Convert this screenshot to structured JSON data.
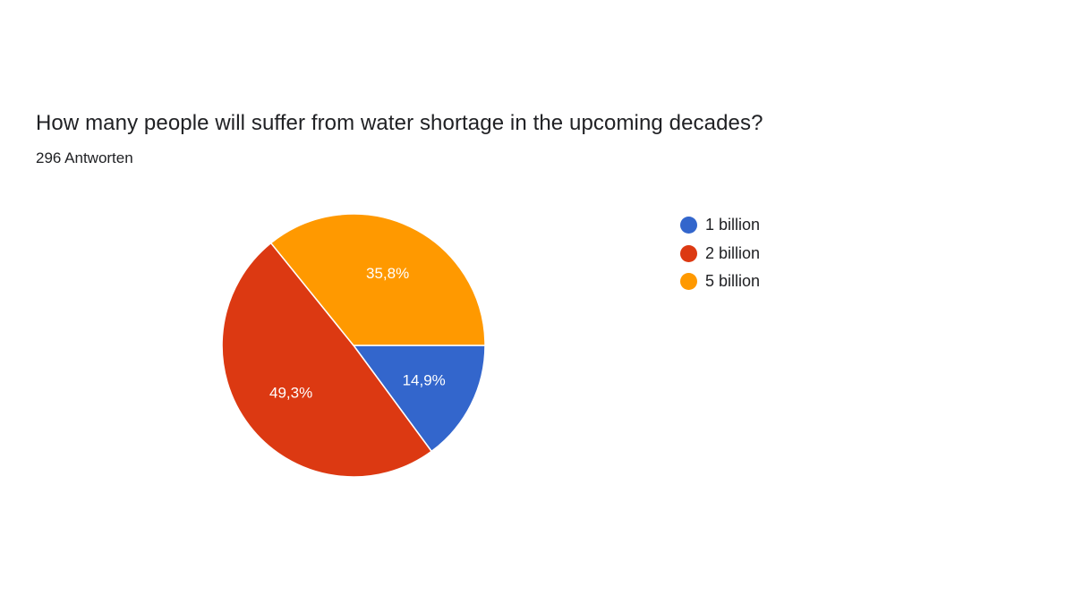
{
  "header": {
    "question": "How many people will suffer from water shortage in the upcoming decades?",
    "responses": "296 Antworten"
  },
  "chart_data": {
    "type": "pie",
    "categories": [
      "1 billion",
      "2 billion",
      "5 billion"
    ],
    "values": [
      14.9,
      49.3,
      35.8
    ],
    "value_labels": [
      "14,9%",
      "49,3%",
      "35,8%"
    ],
    "colors": [
      "#3366cc",
      "#dc3912",
      "#ff9900"
    ],
    "legend_position": "right"
  }
}
